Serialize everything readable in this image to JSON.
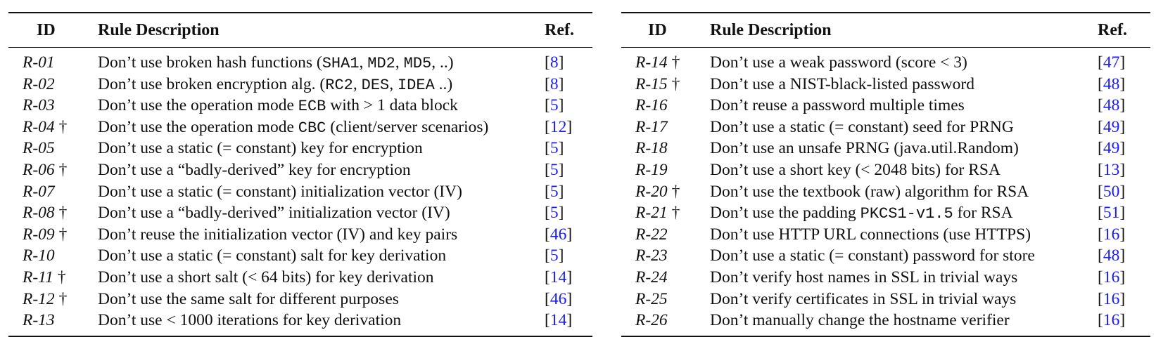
{
  "headers": {
    "id": "ID",
    "description": "Rule Description",
    "ref": "Ref."
  },
  "left_rows": [
    {
      "id": "R-01",
      "dagger": false,
      "desc": [
        {
          "t": "Don’t use broken hash functions ("
        },
        {
          "t": "SHA1",
          "mono": true
        },
        {
          "t": ", "
        },
        {
          "t": "MD2",
          "mono": true
        },
        {
          "t": ", "
        },
        {
          "t": "MD5",
          "mono": true
        },
        {
          "t": ", ..)"
        }
      ],
      "ref": "8"
    },
    {
      "id": "R-02",
      "dagger": false,
      "desc": [
        {
          "t": "Don’t use broken encryption alg. ("
        },
        {
          "t": "RC2",
          "mono": true
        },
        {
          "t": ", "
        },
        {
          "t": "DES",
          "mono": true
        },
        {
          "t": ", "
        },
        {
          "t": "IDEA",
          "mono": true
        },
        {
          "t": " ..)"
        }
      ],
      "ref": "8"
    },
    {
      "id": "R-03",
      "dagger": false,
      "desc": [
        {
          "t": "Don’t use the operation mode "
        },
        {
          "t": "ECB",
          "mono": true
        },
        {
          "t": " with > 1 data block"
        }
      ],
      "ref": "5"
    },
    {
      "id": "R-04",
      "dagger": true,
      "desc": [
        {
          "t": "Don’t use the operation mode "
        },
        {
          "t": "CBC",
          "mono": true
        },
        {
          "t": " (client/server scenarios)"
        }
      ],
      "ref": "12"
    },
    {
      "id": "R-05",
      "dagger": false,
      "desc": [
        {
          "t": "Don’t use a static (= constant) key for encryption"
        }
      ],
      "ref": "5"
    },
    {
      "id": "R-06",
      "dagger": true,
      "desc": [
        {
          "t": "Don’t use a “badly-derived” key for encryption"
        }
      ],
      "ref": "5"
    },
    {
      "id": "R-07",
      "dagger": false,
      "desc": [
        {
          "t": "Don’t use a static (= constant) initialization vector (IV)"
        }
      ],
      "ref": "5"
    },
    {
      "id": "R-08",
      "dagger": true,
      "desc": [
        {
          "t": "Don’t use a “badly-derived” initialization vector (IV)"
        }
      ],
      "ref": "5"
    },
    {
      "id": "R-09",
      "dagger": true,
      "desc": [
        {
          "t": "Don’t reuse the initialization vector (IV) and key pairs"
        }
      ],
      "ref": "46"
    },
    {
      "id": "R-10",
      "dagger": false,
      "desc": [
        {
          "t": "Don’t use a static (= constant) salt for key derivation"
        }
      ],
      "ref": "5"
    },
    {
      "id": "R-11",
      "dagger": true,
      "desc": [
        {
          "t": "Don’t use a short salt (< 64 bits) for key derivation"
        }
      ],
      "ref": "14"
    },
    {
      "id": "R-12",
      "dagger": true,
      "desc": [
        {
          "t": "Don’t use the same salt for different purposes"
        }
      ],
      "ref": "46"
    },
    {
      "id": "R-13",
      "dagger": false,
      "desc": [
        {
          "t": "Don’t use < 1000 iterations for key derivation"
        }
      ],
      "ref": "14"
    }
  ],
  "right_rows": [
    {
      "id": "R-14",
      "dagger": true,
      "desc": [
        {
          "t": "Don’t use a weak password (score < 3)"
        }
      ],
      "ref": "47"
    },
    {
      "id": "R-15",
      "dagger": true,
      "desc": [
        {
          "t": "Don’t use a NIST-black-listed password"
        }
      ],
      "ref": "48"
    },
    {
      "id": "R-16",
      "dagger": false,
      "desc": [
        {
          "t": "Don’t reuse a password multiple times"
        }
      ],
      "ref": "48"
    },
    {
      "id": "R-17",
      "dagger": false,
      "desc": [
        {
          "t": "Don’t use a static (= constant) seed for PRNG"
        }
      ],
      "ref": "49"
    },
    {
      "id": "R-18",
      "dagger": false,
      "desc": [
        {
          "t": "Don’t use an unsafe PRNG (java.util.Random)"
        }
      ],
      "ref": "49"
    },
    {
      "id": "R-19",
      "dagger": false,
      "desc": [
        {
          "t": "Don’t use a short key (< 2048 bits) for RSA"
        }
      ],
      "ref": "13"
    },
    {
      "id": "R-20",
      "dagger": true,
      "desc": [
        {
          "t": "Don’t use the textbook (raw) algorithm for RSA"
        }
      ],
      "ref": "50"
    },
    {
      "id": "R-21",
      "dagger": true,
      "desc": [
        {
          "t": "Don’t use the padding "
        },
        {
          "t": "PKCS1-v1.5",
          "mono": true
        },
        {
          "t": " for RSA"
        }
      ],
      "ref": "51"
    },
    {
      "id": "R-22",
      "dagger": false,
      "desc": [
        {
          "t": "Don’t use HTTP URL connections (use HTTPS)"
        }
      ],
      "ref": "16"
    },
    {
      "id": "R-23",
      "dagger": false,
      "desc": [
        {
          "t": "Don’t use a static (= constant) password for store"
        }
      ],
      "ref": "48"
    },
    {
      "id": "R-24",
      "dagger": false,
      "desc": [
        {
          "t": "Don’t verify host names in SSL in trivial ways"
        }
      ],
      "ref": "16"
    },
    {
      "id": "R-25",
      "dagger": false,
      "desc": [
        {
          "t": "Don’t verify certificates in SSL in trivial ways"
        }
      ],
      "ref": "16"
    },
    {
      "id": "R-26",
      "dagger": false,
      "desc": [
        {
          "t": "Don’t manually change the hostname verifier"
        }
      ],
      "ref": "16"
    }
  ],
  "colors": {
    "text": "#111111",
    "ref_link": "#1a1aff",
    "background": "#ffffff"
  }
}
